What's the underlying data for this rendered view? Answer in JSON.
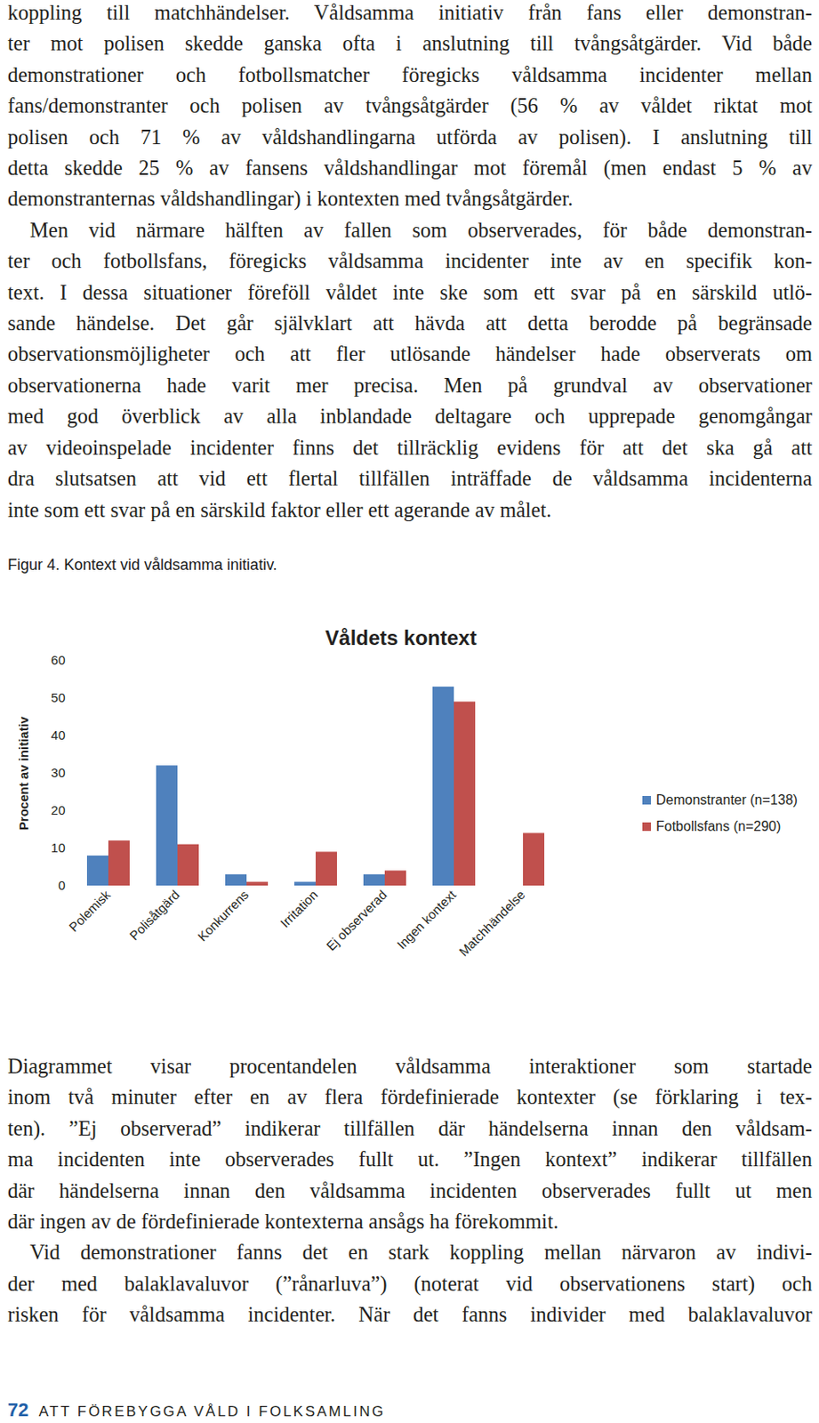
{
  "document": {
    "top_text": [
      [
        "koppling till matchhändelser. Våldsamma initiativ från fans eller demonstran-",
        "ter mot polisen skedde ganska ofta i anslutning till tvångsåtgärder. Vid både",
        "demonstrationer och fotbollsmatcher föregicks våldsamma incidenter mellan",
        "fans/demonstranter och polisen av tvångsåtgärder (56 % av våldet riktat mot",
        "polisen och 71 % av våldshandlingarna utförda av polisen). I anslutning till",
        "detta skedde 25 % av fansens våldshandlingar mot föremål (men endast 5 % av",
        "demonstranternas våldshandlingar) i kontexten med tvångsåtgärder."
      ],
      [
        "Men vid närmare hälften av fallen som observerades, för både demonstran-",
        "ter och fotbollsfans, föregicks våldsamma incidenter inte av en specifik kon-",
        "text. I dessa situationer föreföll våldet inte ske som ett svar på en särskild utlö-",
        "sande händelse. Det går självklart att hävda att detta berodde på begränsade",
        "observationsmöjligheter och att fler utlösande händelser hade observerats om",
        "observationerna hade varit mer precisa. Men på grundval av observationer",
        "med god överblick av alla inblandade deltagare och upprepade genomgångar",
        "av videoinspelade incidenter finns det tillräcklig evidens för att det ska gå att",
        "dra slutsatsen att vid ett flertal tillfällen inträffade de våldsamma incidenterna",
        "inte som ett svar på en särskild faktor eller ett agerande av målet."
      ]
    ],
    "figure_caption": "Figur 4. Kontext vid våldsamma initiativ.",
    "bottom_text": [
      [
        "Diagrammet visar procentandelen våldsamma interaktioner som startade",
        "inom två minuter efter en av flera fördefinierade kontexter (se förklaring i tex-",
        "ten). ”Ej observerad” indikerar tillfällen där händelserna innan den våldsam-",
        "ma incidenten inte observerades fullt ut. ”Ingen kontext” indikerar tillfällen",
        "där händelserna innan den våldsamma incidenten observerades fullt ut men",
        "där ingen av de fördefinierade kontexterna ansågs ha förekommit."
      ],
      [
        "Vid demonstrationer fanns det en stark koppling mellan närvaron av indivi-",
        "der med balaklavaluvor (”rånarluva”) (noterat vid observationens start) och",
        "risken för våldsamma incidenter. När det fanns individer med balaklavaluvor"
      ]
    ],
    "footer": {
      "page_number": 72,
      "title": "ATT FÖREBYGGA VÅLD I FOLKSAMLING"
    }
  },
  "chart_data": {
    "type": "bar",
    "title": "Våldets kontext",
    "y_label": "Procent av initiativ",
    "categories": [
      "Polemisk",
      "Polisåtgärd",
      "Konkurrens",
      "Irritation",
      "Ej observerad",
      "Ingen kontext",
      "Matchhändelse"
    ],
    "series": [
      {
        "name": "Demonstranter (n=138)",
        "color": "#4f81bd",
        "values": [
          8,
          32,
          3,
          1,
          3,
          53,
          0
        ]
      },
      {
        "name": "Fotbollsfans (n=290)",
        "color": "#c0504d",
        "values": [
          12,
          11,
          1,
          9,
          4,
          49,
          14
        ]
      }
    ],
    "ylim": [
      0,
      60
    ],
    "yticks": [
      0,
      10,
      20,
      30,
      40,
      50,
      60
    ],
    "grid": false,
    "legend": "right"
  }
}
